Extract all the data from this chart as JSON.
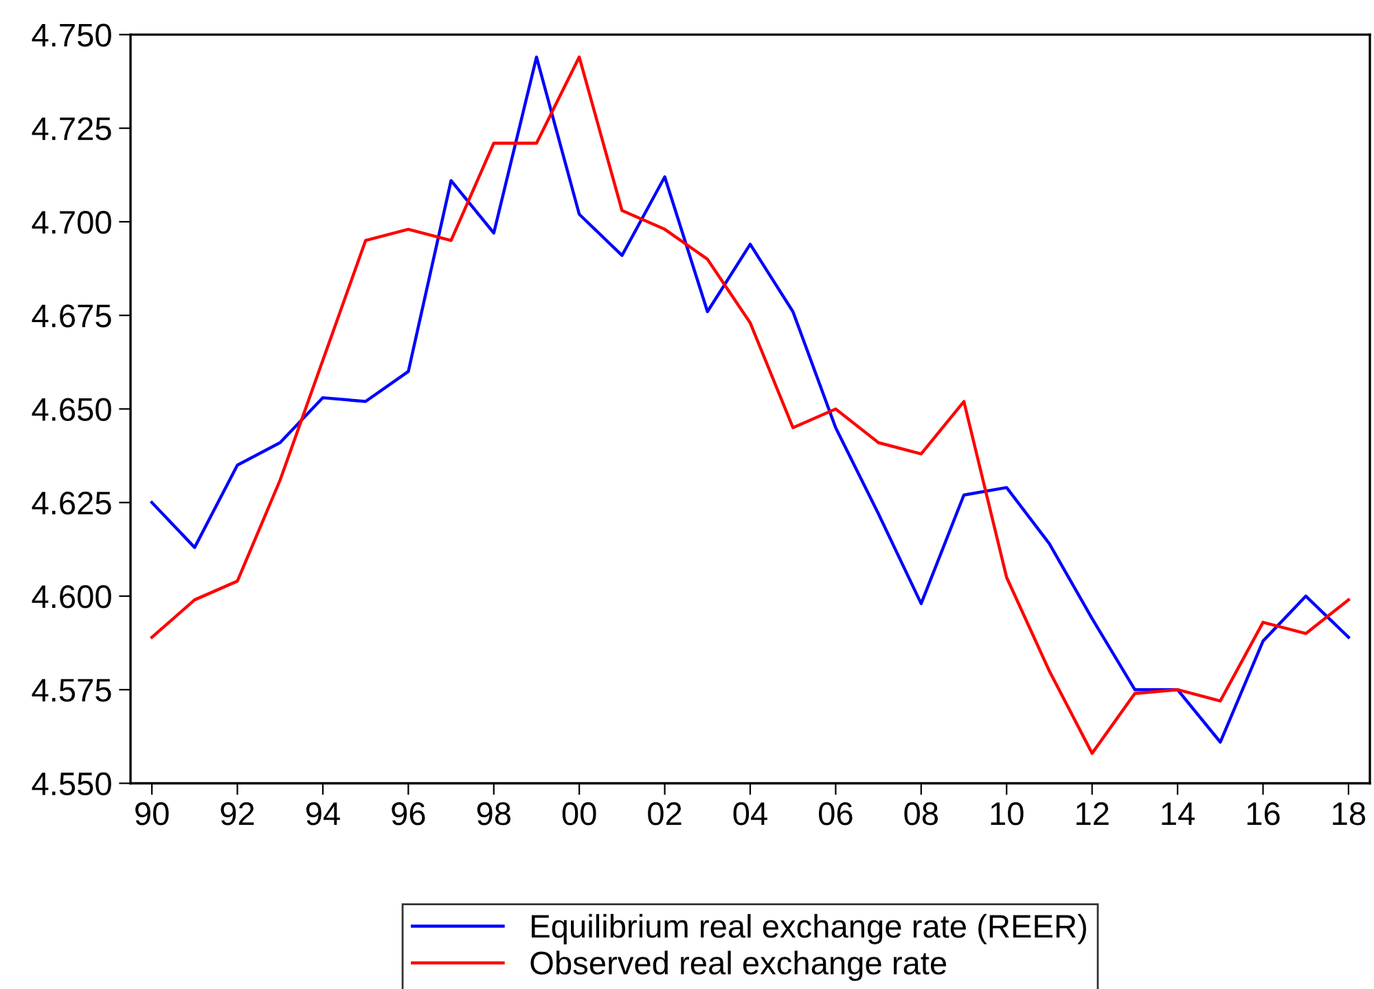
{
  "chart_data": {
    "type": "line",
    "x": [
      1990,
      1991,
      1992,
      1993,
      1994,
      1995,
      1996,
      1997,
      1998,
      1999,
      2000,
      2001,
      2002,
      2003,
      2004,
      2005,
      2006,
      2007,
      2008,
      2009,
      2010,
      2011,
      2012,
      2013,
      2014,
      2015,
      2016,
      2017,
      2018
    ],
    "series": [
      {
        "name": "Equilibrium real exchange rate (REER)",
        "color": "#0000ff",
        "values": [
          4.625,
          4.613,
          4.635,
          4.641,
          4.653,
          4.652,
          4.66,
          4.711,
          4.697,
          4.744,
          4.702,
          4.691,
          4.712,
          4.676,
          4.694,
          4.676,
          4.645,
          4.622,
          4.598,
          4.627,
          4.629,
          4.614,
          4.594,
          4.575,
          4.575,
          4.561,
          4.588,
          4.6,
          4.589
        ]
      },
      {
        "name": "Observed real exchange rate",
        "color": "#ff0000",
        "values": [
          4.589,
          4.599,
          4.604,
          4.631,
          4.663,
          4.695,
          4.698,
          4.695,
          4.721,
          4.721,
          4.744,
          4.703,
          4.698,
          4.69,
          4.673,
          4.645,
          4.65,
          4.641,
          4.638,
          4.652,
          4.605,
          4.58,
          4.558,
          4.574,
          4.575,
          4.572,
          4.593,
          4.59,
          4.599
        ]
      }
    ],
    "xlim": [
      1989.5,
      2018.5
    ],
    "xticks": [
      {
        "value": 1990,
        "label": "90"
      },
      {
        "value": 1992,
        "label": "92"
      },
      {
        "value": 1994,
        "label": "94"
      },
      {
        "value": 1996,
        "label": "96"
      },
      {
        "value": 1998,
        "label": "98"
      },
      {
        "value": 2000,
        "label": "00"
      },
      {
        "value": 2002,
        "label": "02"
      },
      {
        "value": 2004,
        "label": "04"
      },
      {
        "value": 2006,
        "label": "06"
      },
      {
        "value": 2008,
        "label": "08"
      },
      {
        "value": 2010,
        "label": "10"
      },
      {
        "value": 2012,
        "label": "12"
      },
      {
        "value": 2014,
        "label": "14"
      },
      {
        "value": 2016,
        "label": "16"
      },
      {
        "value": 2018,
        "label": "18"
      }
    ],
    "ylim": [
      4.55,
      4.75
    ],
    "yticks": [
      {
        "value": 4.55,
        "label": "4.550"
      },
      {
        "value": 4.575,
        "label": "4.575"
      },
      {
        "value": 4.6,
        "label": "4.600"
      },
      {
        "value": 4.625,
        "label": "4.625"
      },
      {
        "value": 4.65,
        "label": "4.650"
      },
      {
        "value": 4.675,
        "label": "4.675"
      },
      {
        "value": 4.7,
        "label": "4.700"
      },
      {
        "value": 4.725,
        "label": "4.725"
      },
      {
        "value": 4.75,
        "label": "4.750"
      }
    ],
    "legend": "bottom",
    "grid": false,
    "marker": "none",
    "line_style": "solid"
  }
}
